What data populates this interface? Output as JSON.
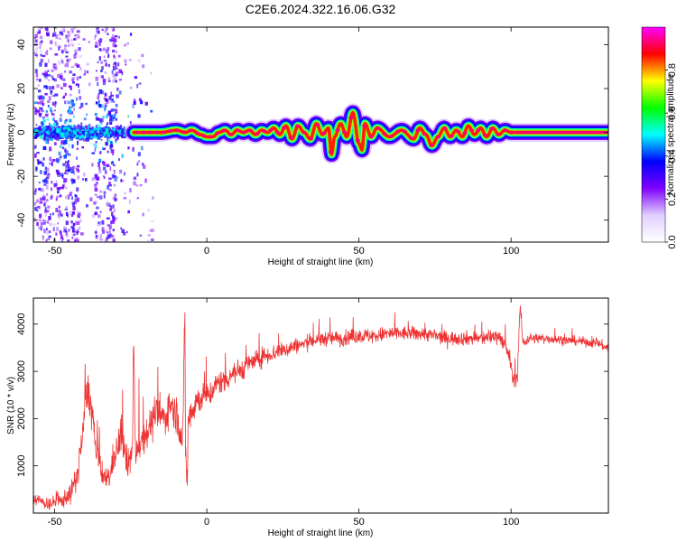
{
  "chart_data": [
    {
      "type": "heatmap",
      "title": "C2E6.2024.322.16.06.G32",
      "xlabel": "Height of straight line (km)",
      "ylabel": "Frequency (Hz)",
      "xlim": [
        -57,
        132
      ],
      "ylim": [
        -50,
        48
      ],
      "x_ticks": [
        -50,
        0,
        50,
        100
      ],
      "y_ticks": [
        -40,
        -20,
        0,
        20,
        40
      ],
      "colorbar": {
        "label": "Normalized spectral amplitude",
        "range": [
          0,
          1
        ],
        "ticks": [
          0.0,
          0.2,
          0.4,
          0.6,
          0.8
        ],
        "colors": [
          "#ffffff",
          "#e0d0ff",
          "#7f00ff",
          "#0000ff",
          "#00ffff",
          "#00ff00",
          "#ffff00",
          "#ff0000",
          "#ff00ff"
        ]
      },
      "ridge": {
        "x": [
          -24,
          -15,
          -10,
          -7,
          -5,
          -2,
          0,
          2,
          4,
          6,
          8,
          10,
          12,
          14,
          16,
          18,
          20,
          22,
          24,
          26,
          28,
          30,
          32,
          34,
          36,
          38,
          40,
          41,
          42,
          44,
          46,
          48,
          50,
          51,
          52,
          54,
          56,
          60,
          64,
          68,
          70,
          72,
          74,
          76,
          78,
          80,
          82,
          84,
          86,
          88,
          90,
          92,
          94,
          96,
          98,
          100,
          103,
          132
        ],
        "y": [
          0,
          0,
          1,
          0,
          1,
          -1,
          -2,
          -2,
          0,
          1,
          -1,
          1,
          0,
          1,
          -1,
          1,
          0,
          2,
          -1,
          3,
          -3,
          3,
          0,
          -3,
          4,
          -1,
          2,
          -10,
          -2,
          4,
          -2,
          9,
          -5,
          -8,
          4,
          -2,
          2,
          -2,
          1,
          -3,
          2,
          -1,
          -6,
          -2,
          2,
          -2,
          1,
          -2,
          3,
          -1,
          2,
          -2,
          2,
          -1,
          1,
          0,
          0,
          0
        ]
      },
      "noise_region": {
        "x_range": [
          -57,
          -24
        ],
        "dense_bands": [
          [
            -57,
            -42
          ],
          [
            -37,
            -30
          ]
        ]
      },
      "ridge_amplitude": {
        "default": 0.9,
        "x_range_low": [
          -57,
          -24
        ],
        "low_value": 0.45
      }
    },
    {
      "type": "line",
      "title": "",
      "xlabel": "Height of straight line (km)",
      "ylabel": "SNR (10 * v/v)",
      "xlim": [
        -57,
        132
      ],
      "ylim": [
        0,
        4550
      ],
      "x_ticks": [
        -50,
        0,
        50,
        100
      ],
      "y_ticks": [
        1000,
        2000,
        3000,
        4000
      ],
      "color": "#ee3333",
      "series": [
        {
          "name": "",
          "x": [
            -57,
            -52,
            -48,
            -45,
            -43,
            -41,
            -40,
            -39,
            -38,
            -36,
            -34,
            -32,
            -30,
            -28,
            -26,
            -24.5,
            -24,
            -23.5,
            -22,
            -20,
            -18,
            -16,
            -14,
            -12,
            -10,
            -8,
            -7.2,
            -7,
            -6.5,
            -6,
            -5,
            -3,
            0,
            5,
            10,
            15,
            20,
            25,
            30,
            35,
            40,
            45,
            50,
            55,
            60,
            70,
            80,
            90,
            96,
            99,
            101,
            102,
            103,
            104,
            106,
            110,
            120,
            128,
            132
          ],
          "y": [
            300,
            200,
            250,
            400,
            700,
            1500,
            2300,
            2600,
            2200,
            1200,
            700,
            800,
            1300,
            1600,
            1000,
            1300,
            3500,
            1300,
            1500,
            1700,
            1900,
            2100,
            2000,
            2300,
            2100,
            1500,
            4150,
            1400,
            700,
            2000,
            2200,
            2400,
            2500,
            2800,
            3000,
            3200,
            3350,
            3450,
            3550,
            3650,
            3700,
            3700,
            3750,
            3750,
            3800,
            3800,
            3700,
            3700,
            3750,
            3400,
            2800,
            2900,
            4300,
            3600,
            3700,
            3700,
            3650,
            3600,
            3500
          ],
          "jitter_amplitude": [
            250,
            250,
            300,
            400,
            500,
            700,
            800,
            800,
            800,
            600,
            400,
            500,
            700,
            700,
            600,
            600,
            600,
            600,
            700,
            700,
            700,
            700,
            700,
            700,
            700,
            700,
            500,
            700,
            600,
            700,
            700,
            600,
            500,
            500,
            450,
            400,
            350,
            350,
            300,
            300,
            300,
            300,
            300,
            300,
            300,
            280,
            280,
            280,
            280,
            350,
            300,
            300,
            300,
            250,
            200,
            200,
            180,
            180,
            200
          ]
        }
      ]
    }
  ]
}
